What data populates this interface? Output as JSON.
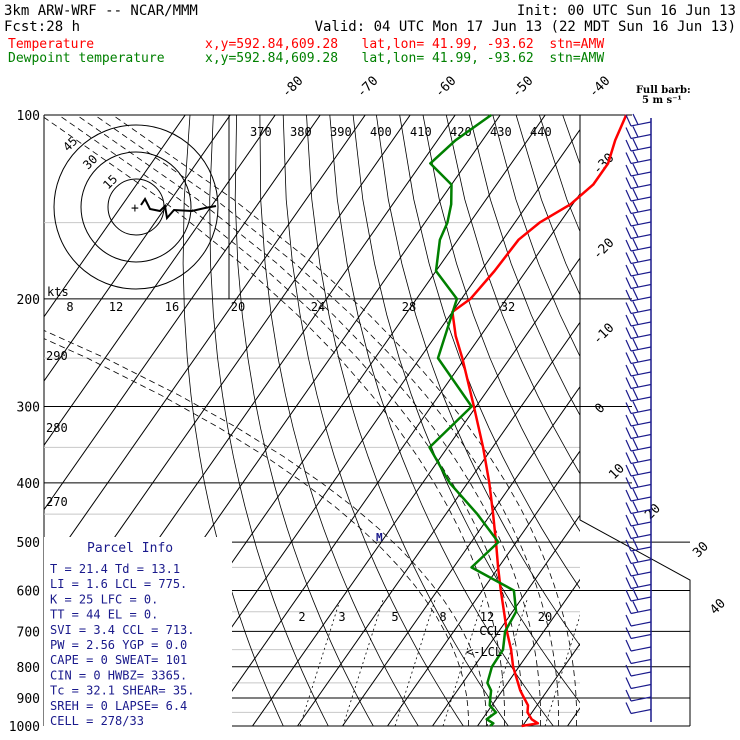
{
  "header": {
    "model": "3km ARW-WRF -- NCAR/MMM",
    "init": "Init: 00 UTC Sun 16 Jun 13",
    "fcst_label": "Fcst:",
    "fcst_value": "28 h",
    "valid": "Valid: 04 UTC Mon 17 Jun 13 (22 MDT Sun 16 Jun 13)",
    "temp_label": "Temperature",
    "temp_info": "x,y=592.84,609.28   lat,lon= 41.99, -93.62  stn=AMW",
    "dew_label": "Dewpoint temperature",
    "dew_info": "x,y=592.84,609.28   lat,lon= 41.99, -93.62  stn=AMW",
    "barb_title": "Full barb:",
    "barb_unit": "5 m s⁻¹",
    "colors": {
      "temperature": "#ff0000",
      "dewpoint": "#008000",
      "info_text": "#1a1a8c",
      "wind_barbs": "#1a1a8c"
    }
  },
  "hodograph": {
    "kts_label": "kts",
    "ring_labels": [
      "15",
      "30",
      "45"
    ]
  },
  "parcel_info": {
    "title": "Parcel Info",
    "rows": [
      "T  =    21.4  Td =  13.1",
      "LI =     1.6  LCL =  775.",
      "K  =      25  LFC =    0.",
      "TT =      44  EL  =    0.",
      "SVI =    3.4  CCL =  713.",
      "PW =    2.56  YGP =   0.0",
      "CAPE =     0  SWEAT=  101",
      "CIN =      0  HWBZ= 3365.",
      "Tc =    32.1  SHEAR=  35.",
      "SREH =     0  LAPSE=  6.4",
      "CELL = 278/33"
    ]
  },
  "annotations": {
    "ccl": "-CCL",
    "lcl": "<-LCL",
    "m": "M"
  },
  "chart_data": {
    "type": "line",
    "title": "",
    "xlabel": "",
    "ylabel": "",
    "y_scale": "log-pressure",
    "ylim": [
      1000,
      100
    ],
    "pressure_ticks": [
      "100",
      "200",
      "300",
      "400",
      "500",
      "600",
      "700",
      "800",
      "900",
      "1000"
    ],
    "isotherm_labels": [
      "-80",
      "-70",
      "-60",
      "-50",
      "-40",
      "-30",
      "-20",
      "-10",
      "0",
      "10",
      "20",
      "30",
      "40"
    ],
    "theta_labels": [
      "370",
      "380",
      "390",
      "400",
      "410",
      "420",
      "430",
      "440"
    ],
    "theta_left_labels": [
      "290",
      "280",
      "270"
    ],
    "mixing_ratio_upper": [
      "8",
      "12",
      "16",
      "20",
      "24",
      "28",
      "32"
    ],
    "mixing_ratio_lower": [
      "2",
      "3",
      "5",
      "8",
      "12",
      "20"
    ],
    "series": [
      {
        "name": "Temperature",
        "color": "#ff0000",
        "pressure": [
          1000,
          990,
          975,
          950,
          925,
          900,
          875,
          850,
          800,
          750,
          700,
          650,
          600,
          550,
          500,
          450,
          400,
          350,
          300,
          250,
          230,
          210,
          200,
          180,
          160,
          150,
          140,
          130,
          120,
          110,
          100
        ],
        "temp": [
          19.8,
          23.0,
          21.0,
          19.0,
          18.0,
          16.0,
          14.0,
          12.3,
          8.7,
          5.6,
          1.8,
          -1.9,
          -5.9,
          -10.1,
          -14.5,
          -19.5,
          -25.2,
          -32.1,
          -40.5,
          -50.6,
          -55.5,
          -60.0,
          -58.0,
          -57.0,
          -56.5,
          -54.5,
          -50.5,
          -48.5,
          -48.5,
          -50.5,
          -52.0
        ]
      },
      {
        "name": "Dewpoint temperature",
        "color": "#008000",
        "pressure": [
          1000,
          990,
          975,
          950,
          925,
          900,
          875,
          850,
          800,
          750,
          700,
          650,
          600,
          550,
          500,
          450,
          400,
          350,
          300,
          250,
          200,
          180,
          160,
          150,
          140,
          130,
          120,
          110,
          100
        ],
        "temp": [
          12.8,
          13.1,
          11.0,
          12.0,
          9.5,
          8.5,
          7.5,
          5.5,
          4.0,
          3.8,
          1.4,
          0.8,
          -3.0,
          -16.0,
          -14.0,
          -23.0,
          -34.0,
          -44.0,
          -41.0,
          -56.0,
          -61.0,
          -70.0,
          -74.0,
          -75.0,
          -77.0,
          -80.0,
          -88.0,
          -86.0,
          -82.0
        ]
      }
    ]
  }
}
